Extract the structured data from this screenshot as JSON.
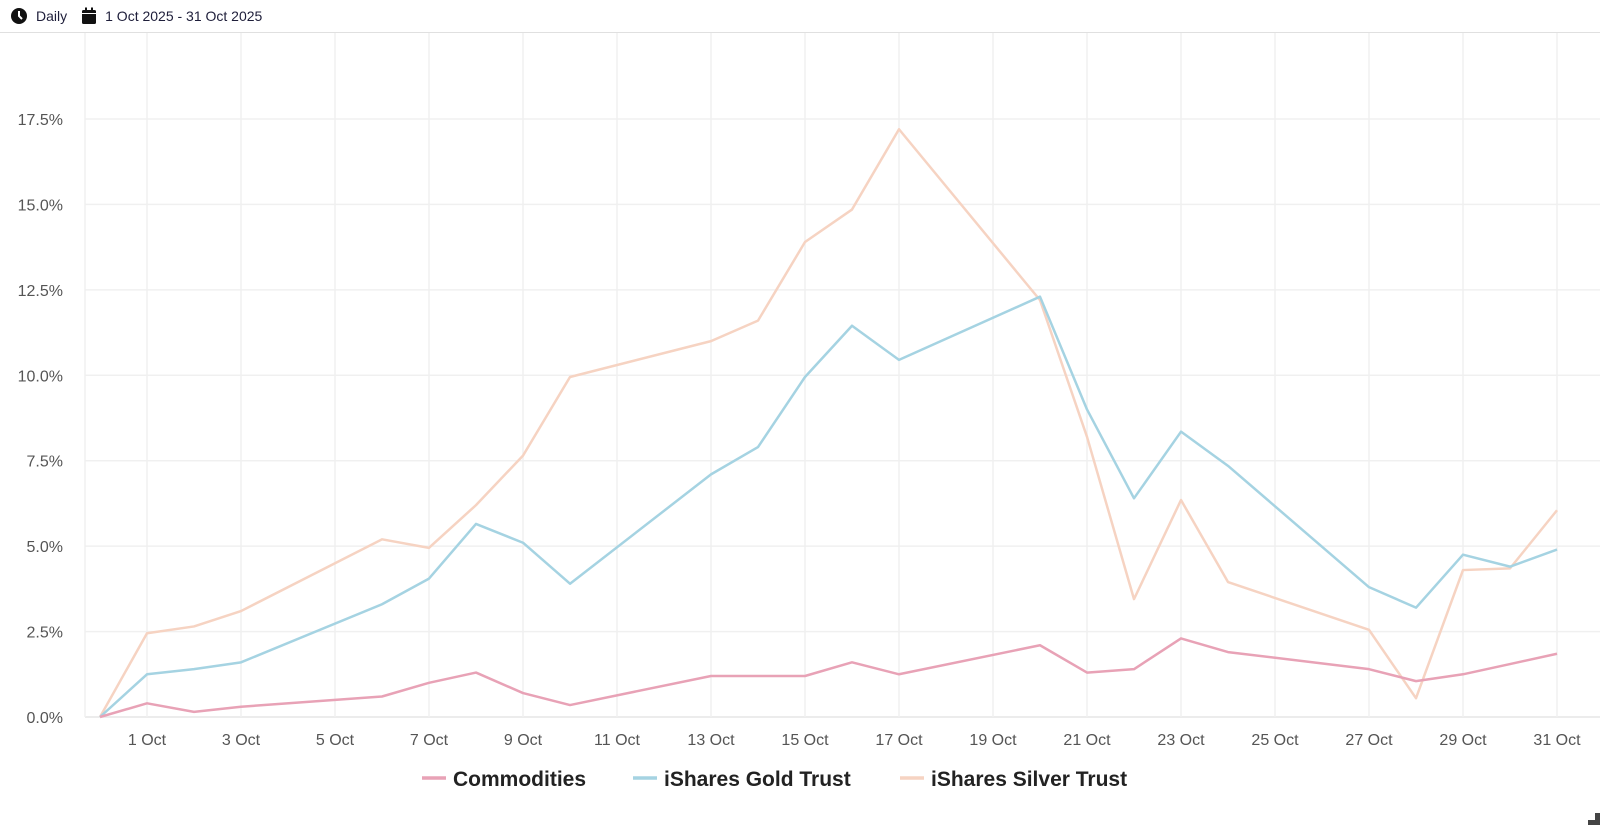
{
  "toolbar": {
    "interval_icon": "clock-icon",
    "interval_label": "Daily",
    "date_icon": "calendar-icon",
    "date_range": "1 Oct 2025 - 31 Oct 2025"
  },
  "chart_data": {
    "type": "line",
    "title": "",
    "xlabel": "",
    "ylabel": "",
    "ylim": [
      0,
      20
    ],
    "yticks": [
      0,
      2.5,
      5,
      7.5,
      10,
      12.5,
      15,
      17.5
    ],
    "ytick_labels": [
      "0.0%",
      "2.5%",
      "5.0%",
      "7.5%",
      "10.0%",
      "12.5%",
      "15.0%",
      "17.5%"
    ],
    "x_range_days": [
      0,
      31
    ],
    "xticks": [
      1,
      3,
      5,
      7,
      9,
      11,
      13,
      15,
      17,
      19,
      21,
      23,
      25,
      27,
      29,
      31
    ],
    "xtick_labels": [
      "1 Oct",
      "3 Oct",
      "5 Oct",
      "7 Oct",
      "9 Oct",
      "11 Oct",
      "13 Oct",
      "15 Oct",
      "17 Oct",
      "19 Oct",
      "21 Oct",
      "23 Oct",
      "25 Oct",
      "27 Oct",
      "29 Oct",
      "31 Oct"
    ],
    "grid": true,
    "legend_placement": "bottom-center",
    "x_days": [
      0,
      1,
      2,
      3,
      6,
      7,
      8,
      9,
      10,
      13,
      14,
      15,
      16,
      17,
      20,
      21,
      22,
      23,
      24,
      27,
      28,
      29,
      30,
      31
    ],
    "series": [
      {
        "name": "Commodities",
        "color": "#e8a2b6",
        "values": [
          0,
          0.4,
          0.15,
          0.3,
          0.6,
          1.0,
          1.3,
          0.7,
          0.35,
          1.2,
          1.2,
          1.2,
          1.6,
          1.25,
          2.1,
          1.3,
          1.4,
          2.3,
          1.9,
          1.4,
          1.05,
          1.25,
          1.55,
          1.85
        ]
      },
      {
        "name": "iShares Gold Trust",
        "color": "#a5d3e2",
        "values": [
          0,
          1.25,
          1.4,
          1.6,
          3.3,
          4.05,
          5.65,
          5.1,
          3.9,
          7.1,
          7.9,
          9.95,
          11.45,
          10.45,
          12.3,
          9.0,
          6.4,
          8.35,
          7.35,
          3.8,
          3.2,
          4.75,
          4.4,
          4.9
        ]
      },
      {
        "name": "iShares Silver Trust",
        "color": "#f6d3c2",
        "values": [
          0,
          2.45,
          2.65,
          3.1,
          5.2,
          4.95,
          6.2,
          7.65,
          9.95,
          11.0,
          11.6,
          13.9,
          14.85,
          17.2,
          12.2,
          8.2,
          3.45,
          6.35,
          3.95,
          2.55,
          0.55,
          4.3,
          4.35,
          6.05
        ]
      }
    ]
  }
}
